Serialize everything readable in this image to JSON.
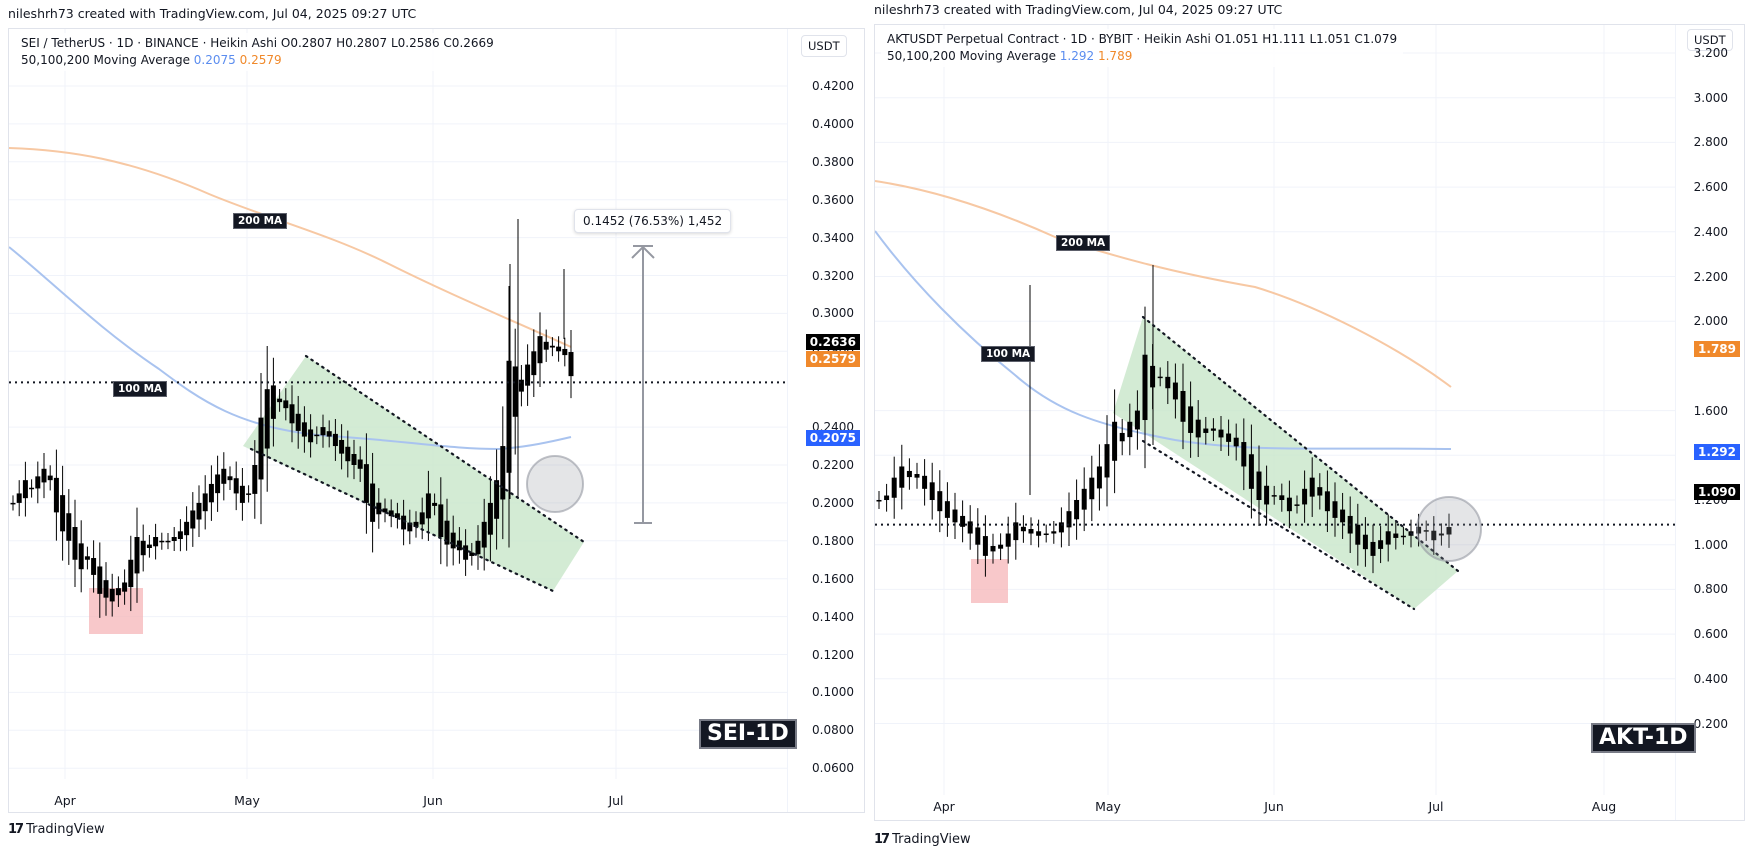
{
  "credit": "nileshrh73 created with TradingView.com, Jul 04, 2025 09:27 UTC",
  "brand": {
    "logo_mark": "17",
    "name": "TradingView"
  },
  "colors": {
    "ma100": "#a9c3ef",
    "ma200": "#f7c8a3",
    "candle": "#000000",
    "channel_fill": "#c8e6c9",
    "zone_red": "#f5b5b8",
    "tag_black": "#000000",
    "tag_orange": "#f0892b",
    "tag_blue": "#2962ff"
  },
  "charts": [
    {
      "id": "sei",
      "legend": {
        "line1": "SEI / TetherUS · 1D · BINANCE · Heikin Ashi  O0.2807  H0.2807  L0.2586  C0.2669",
        "ma_label": "50,100,200 Moving Average",
        "ma100_value": "0.2075",
        "ma200_value": "0.2579"
      },
      "currency": "USDT",
      "price_ticks": [
        "0.4200",
        "0.4000",
        "0.3800",
        "0.3600",
        "0.3400",
        "0.3200",
        "0.3000",
        "0.2800",
        "0.2400",
        "0.2200",
        "0.2000",
        "0.1800",
        "0.1600",
        "0.1400",
        "0.1200",
        "0.1000",
        "0.0800",
        "0.0600"
      ],
      "price_tags": [
        {
          "value": "0.2636",
          "kind": "last"
        },
        {
          "value": "0.2579",
          "kind": "ma200"
        },
        {
          "value": "0.2075",
          "kind": "ma100"
        }
      ],
      "time_labels": [
        "Apr",
        "May",
        "Jun",
        "Jul"
      ],
      "ma_labels": {
        "ma200": "200 MA",
        "ma100": "100 MA"
      },
      "symbol_label": "SEI-1D",
      "measure": {
        "text": "0.1452 (76.53%) 1,452"
      }
    },
    {
      "id": "akt",
      "legend": {
        "line1": "AKTUSDT Perpetual Contract · 1D · BYBIT · Heikin Ashi  O1.051  H1.111  L1.051  C1.079",
        "ma_label": "50,100,200 Moving Average",
        "ma100_value": "1.292",
        "ma200_value": "1.789"
      },
      "currency": "USDT",
      "price_ticks": [
        "3.200",
        "3.000",
        "2.800",
        "2.600",
        "2.400",
        "2.200",
        "2.000",
        "1.600",
        "1.400",
        "1.200",
        "1.000",
        "0.800",
        "0.600",
        "0.400",
        "0.200"
      ],
      "price_tags": [
        {
          "value": "1.789",
          "kind": "ma200"
        },
        {
          "value": "1.292",
          "kind": "ma100"
        },
        {
          "value": "1.090",
          "kind": "last"
        }
      ],
      "time_labels": [
        "Apr",
        "May",
        "Jun",
        "Jul",
        "Aug"
      ],
      "ma_labels": {
        "ma200": "200 MA",
        "ma100": "100 MA"
      },
      "symbol_label": "AKT-1D"
    }
  ],
  "chart_data": [
    {
      "type": "candlestick",
      "title": "SEI / TetherUS · 1D · BINANCE · Heikin Ashi",
      "xlabel": "",
      "ylabel": "USDT",
      "ylim": [
        0.05,
        0.43
      ],
      "x_ticks": [
        "Apr",
        "May",
        "Jun",
        "Jul"
      ],
      "last_price": 0.2636,
      "ohlc_latest": {
        "open": 0.2807,
        "high": 0.2807,
        "low": 0.2586,
        "close": 0.2669
      },
      "series": [
        {
          "name": "100 MA",
          "value": 0.2075,
          "color": "#a9c3ef"
        },
        {
          "name": "200 MA",
          "value": 0.2579,
          "color": "#f7c8a3"
        }
      ],
      "candles_close_approx": [
        0.2,
        0.205,
        0.212,
        0.208,
        0.214,
        0.218,
        0.212,
        0.195,
        0.185,
        0.18,
        0.17,
        0.165,
        0.17,
        0.162,
        0.152,
        0.15,
        0.148,
        0.155,
        0.158,
        0.17,
        0.182,
        0.18,
        0.178,
        0.182,
        0.18,
        0.18,
        0.182,
        0.185,
        0.19,
        0.196,
        0.2,
        0.205,
        0.21,
        0.215,
        0.218,
        0.212,
        0.205,
        0.2,
        0.205,
        0.22,
        0.245,
        0.26,
        0.262,
        0.255,
        0.25,
        0.242,
        0.238,
        0.235,
        0.232,
        0.236,
        0.24,
        0.235,
        0.23,
        0.226,
        0.222,
        0.22,
        0.218,
        0.2,
        0.19,
        0.194,
        0.195,
        0.193,
        0.192,
        0.186,
        0.185,
        0.19,
        0.195,
        0.205,
        0.2,
        0.182,
        0.178,
        0.176,
        0.175,
        0.17,
        0.172,
        0.18,
        0.19,
        0.2,
        0.212,
        0.23,
        0.275,
        0.272,
        0.265,
        0.273,
        0.28,
        0.288,
        0.285,
        0.282,
        0.28,
        0.278,
        0.2669
      ],
      "annotations": [
        {
          "type": "measure",
          "text": "0.1452 (76.53%) 1,452",
          "from": 0.19,
          "to": 0.3352
        },
        {
          "type": "descending_channel",
          "color": "green"
        },
        {
          "type": "zone",
          "color": "red",
          "range": [
            0.128,
            0.153
          ]
        },
        {
          "type": "circle",
          "note": "breakout"
        },
        {
          "type": "label",
          "text": "200 MA"
        },
        {
          "type": "label",
          "text": "100 MA"
        },
        {
          "type": "label",
          "text": "SEI-1D"
        }
      ]
    },
    {
      "type": "candlestick",
      "title": "AKTUSDT Perpetual Contract · 1D · BYBIT · Heikin Ashi",
      "xlabel": "",
      "ylabel": "USDT",
      "ylim": [
        0.1,
        3.25
      ],
      "x_ticks": [
        "Apr",
        "May",
        "Jun",
        "Jul",
        "Aug"
      ],
      "last_price": 1.09,
      "ohlc_latest": {
        "open": 1.051,
        "high": 1.111,
        "low": 1.051,
        "close": 1.079
      },
      "series": [
        {
          "name": "100 MA",
          "value": 1.292,
          "color": "#a9c3ef"
        },
        {
          "name": "200 MA",
          "value": 1.789,
          "color": "#f7c8a3"
        }
      ],
      "candles_close_approx": [
        1.2,
        1.22,
        1.3,
        1.35,
        1.33,
        1.3,
        1.25,
        1.2,
        1.15,
        1.12,
        1.1,
        1.08,
        1.05,
        1.0,
        0.95,
        0.97,
        1.0,
        1.05,
        1.1,
        1.08,
        1.05,
        1.04,
        1.05,
        1.06,
        1.1,
        1.15,
        1.2,
        1.25,
        1.3,
        1.35,
        1.45,
        1.55,
        1.5,
        1.55,
        1.6,
        1.85,
        1.8,
        1.75,
        1.7,
        1.65,
        1.55,
        1.5,
        1.48,
        1.5,
        1.52,
        1.48,
        1.46,
        1.44,
        1.35,
        1.25,
        1.2,
        1.18,
        1.22,
        1.2,
        1.15,
        1.18,
        1.25,
        1.3,
        1.22,
        1.15,
        1.12,
        1.1,
        1.05,
        1.0,
        0.98,
        0.95,
        1.02,
        1.06,
        1.05,
        1.04,
        1.06,
        1.08,
        1.06,
        1.02,
        1.05,
        1.079
      ],
      "annotations": [
        {
          "type": "descending_channel",
          "color": "green"
        },
        {
          "type": "zone",
          "color": "red",
          "range": [
            0.87,
            1.06
          ]
        },
        {
          "type": "circle",
          "note": "breakout retest"
        },
        {
          "type": "label",
          "text": "200 MA"
        },
        {
          "type": "label",
          "text": "100 MA"
        },
        {
          "type": "label",
          "text": "AKT-1D"
        }
      ]
    }
  ]
}
